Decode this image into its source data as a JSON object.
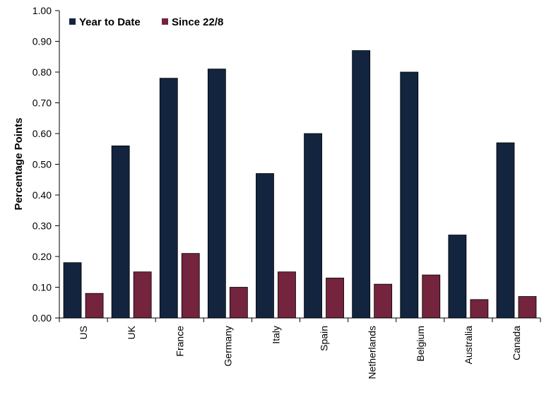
{
  "chart_data": {
    "type": "bar",
    "title": "",
    "xlabel": "",
    "ylabel": "Percentage Points",
    "ylim": [
      0,
      1.0
    ],
    "yticks": [
      "0.00",
      "0.10",
      "0.20",
      "0.30",
      "0.40",
      "0.50",
      "0.60",
      "0.70",
      "0.80",
      "0.90",
      "1.00"
    ],
    "grid": false,
    "legend_position": "top-left",
    "categories": [
      "US",
      "UK",
      "France",
      "Germany",
      "Italy",
      "Spain",
      "Netherlands",
      "Belgium",
      "Australia",
      "Canada"
    ],
    "series": [
      {
        "name": "Year to Date",
        "color": "#13243f",
        "values": [
          0.18,
          0.56,
          0.78,
          0.81,
          0.47,
          0.6,
          0.87,
          0.8,
          0.27,
          0.57
        ]
      },
      {
        "name": "Since 22/8",
        "color": "#74243d",
        "values": [
          0.08,
          0.15,
          0.21,
          0.1,
          0.15,
          0.13,
          0.11,
          0.14,
          0.06,
          0.07
        ]
      }
    ]
  }
}
